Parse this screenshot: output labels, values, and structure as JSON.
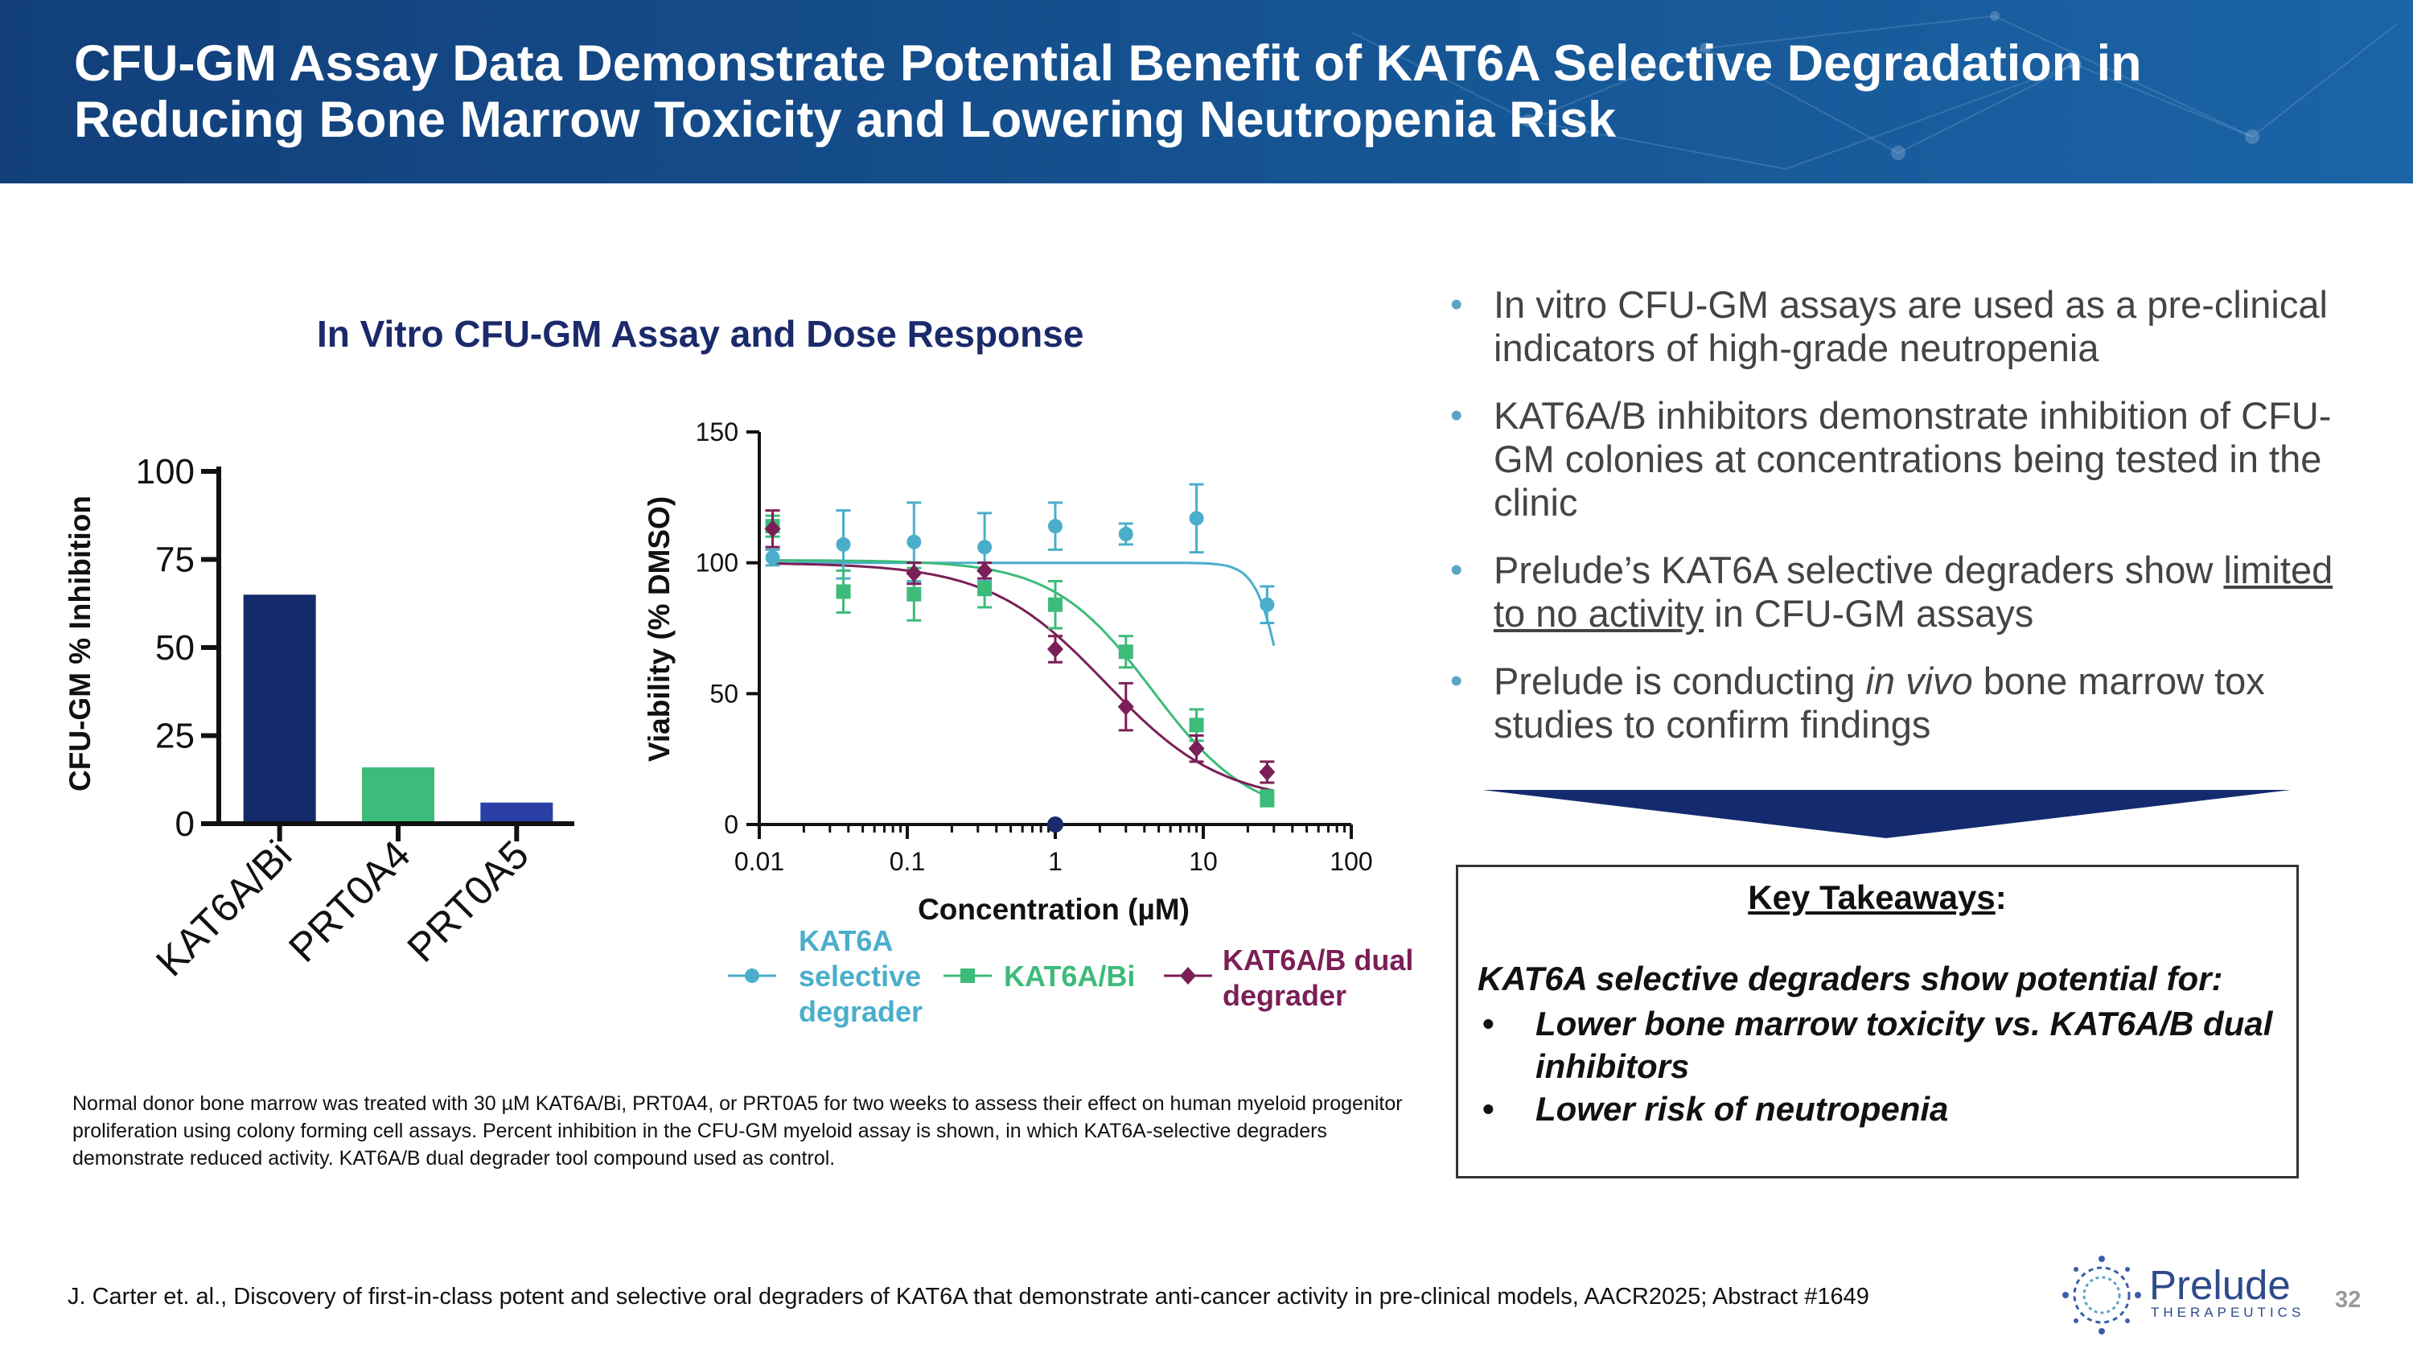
{
  "slide": {
    "title": "CFU-GM Assay Data Demonstrate Potential Benefit of KAT6A Selective Degradation in Reducing Bone Marrow Toxicity and Lowering Neutropenia Risk",
    "chart_title": "In Vitro CFU-GM Assay and Dose Response",
    "caption": "Normal donor bone marrow was treated with 30 µM KAT6A/Bi, PRT0A4, or PRT0A5 for two weeks to assess their effect on human myeloid progenitor proliferation using colony forming cell assays. Percent inhibition in the CFU-GM myeloid assay is shown, in which KAT6A-selective degraders demonstrate reduced activity. KAT6A/B dual degrader tool compound used as control.",
    "footer": "J. Carter et. al., Discovery of first-in-class potent and selective oral degraders of KAT6A that demonstrate anti-cancer activity in pre-clinical models, AACR2025; Abstract #1649",
    "page_number": "32"
  },
  "bullets": [
    {
      "text": "In vitro CFU-GM assays are used as a pre-clinical indicators of high-grade neutropenia"
    },
    {
      "text": "KAT6A/B inhibitors demonstrate inhibition of CFU-GM colonies at concentrations being tested in the clinic"
    },
    {
      "pre": "Prelude’s KAT6A selective degraders show ",
      "underlined": "limited to no activity",
      "post": " in CFU-GM assays"
    },
    {
      "pre": "Prelude is conducting ",
      "italic": "in vivo",
      "post": " bone marrow tox studies to confirm findings"
    }
  ],
  "takeaways": {
    "heading": "Key Takeaways",
    "heading_suffix": ":",
    "lead": "KAT6A selective degraders show potential for:",
    "items": [
      "Lower bone marrow toxicity vs. KAT6A/B dual inhibitors",
      "Lower risk of neutropenia"
    ],
    "bullet": "•"
  },
  "logo": {
    "name": "Prelude",
    "sub": "THERAPEUTICS"
  },
  "colors": {
    "header": "#15508e",
    "navy": "#152a6b",
    "green": "#3dbb7a",
    "blue": "#2a3fa6",
    "cyan": "#4aaecb",
    "maroon": "#7a1f57",
    "bullet": "#5aa5c6"
  },
  "chart_data": [
    {
      "type": "bar",
      "categories": [
        "KAT6A/Bi",
        "PRT0A4",
        "PRT0A5"
      ],
      "values": [
        65,
        16,
        6
      ],
      "ylabel": "CFU-GM % Inhibition",
      "xlabel": "",
      "ylim": [
        0,
        100
      ],
      "yticks": [
        0,
        25,
        50,
        75,
        100
      ],
      "bar_colors": [
        "#152a6b",
        "#3dbb7a",
        "#2a3fa6"
      ]
    },
    {
      "type": "scatter",
      "xscale": "log",
      "xlabel": "Concentration (µM)",
      "ylabel": "Viability (% DMSO)",
      "xlim": [
        0.01,
        100
      ],
      "ylim": [
        0,
        150
      ],
      "xticks": [
        0.01,
        0.1,
        1,
        10,
        100
      ],
      "xtick_labels": [
        "0.01",
        "0.1",
        "1",
        "10",
        "100"
      ],
      "yticks": [
        0,
        50,
        100,
        150
      ],
      "extra_point": {
        "x": 1,
        "y": 0
      },
      "series": [
        {
          "name": "KAT6A selective degrader",
          "legend_lines": [
            "KAT6A",
            "selective",
            "degrader"
          ],
          "color": "#4aaecb",
          "marker": "circle",
          "x": [
            0.0123,
            0.037,
            0.111,
            0.333,
            1,
            3,
            9,
            27
          ],
          "y": [
            102,
            107,
            108,
            106,
            114,
            111,
            117,
            84
          ],
          "err": [
            3,
            13,
            15,
            13,
            9,
            4,
            13,
            7
          ],
          "fit": {
            "top": 100,
            "bottom": 0,
            "ic50": 35,
            "hill": 5
          }
        },
        {
          "name": "KAT6A/Bi",
          "legend_lines": [
            "KAT6A/Bi"
          ],
          "color": "#3dbb7a",
          "marker": "square",
          "x": [
            0.0123,
            0.037,
            0.111,
            0.333,
            1,
            3,
            9,
            27
          ],
          "y": [
            114,
            89,
            88,
            90,
            84,
            66,
            38,
            10
          ],
          "err": [
            4,
            8,
            10,
            7,
            9,
            6,
            6,
            3
          ],
          "fit": {
            "top": 101,
            "bottom": 2,
            "ic50": 4.5,
            "hill": 1.3
          }
        },
        {
          "name": "KAT6A/B dual degrader",
          "legend_lines": [
            "KAT6A/B dual",
            "degrader"
          ],
          "color": "#7a1f57",
          "marker": "diamond",
          "x": [
            0.0123,
            0.111,
            0.333,
            1,
            3,
            9,
            27
          ],
          "y": [
            113,
            96,
            97,
            67,
            45,
            29,
            20
          ],
          "err": [
            7,
            4,
            3,
            5,
            9,
            5,
            4
          ],
          "fit": {
            "top": 100,
            "bottom": 8,
            "ic50": 2.2,
            "hill": 1.1
          }
        }
      ]
    }
  ]
}
